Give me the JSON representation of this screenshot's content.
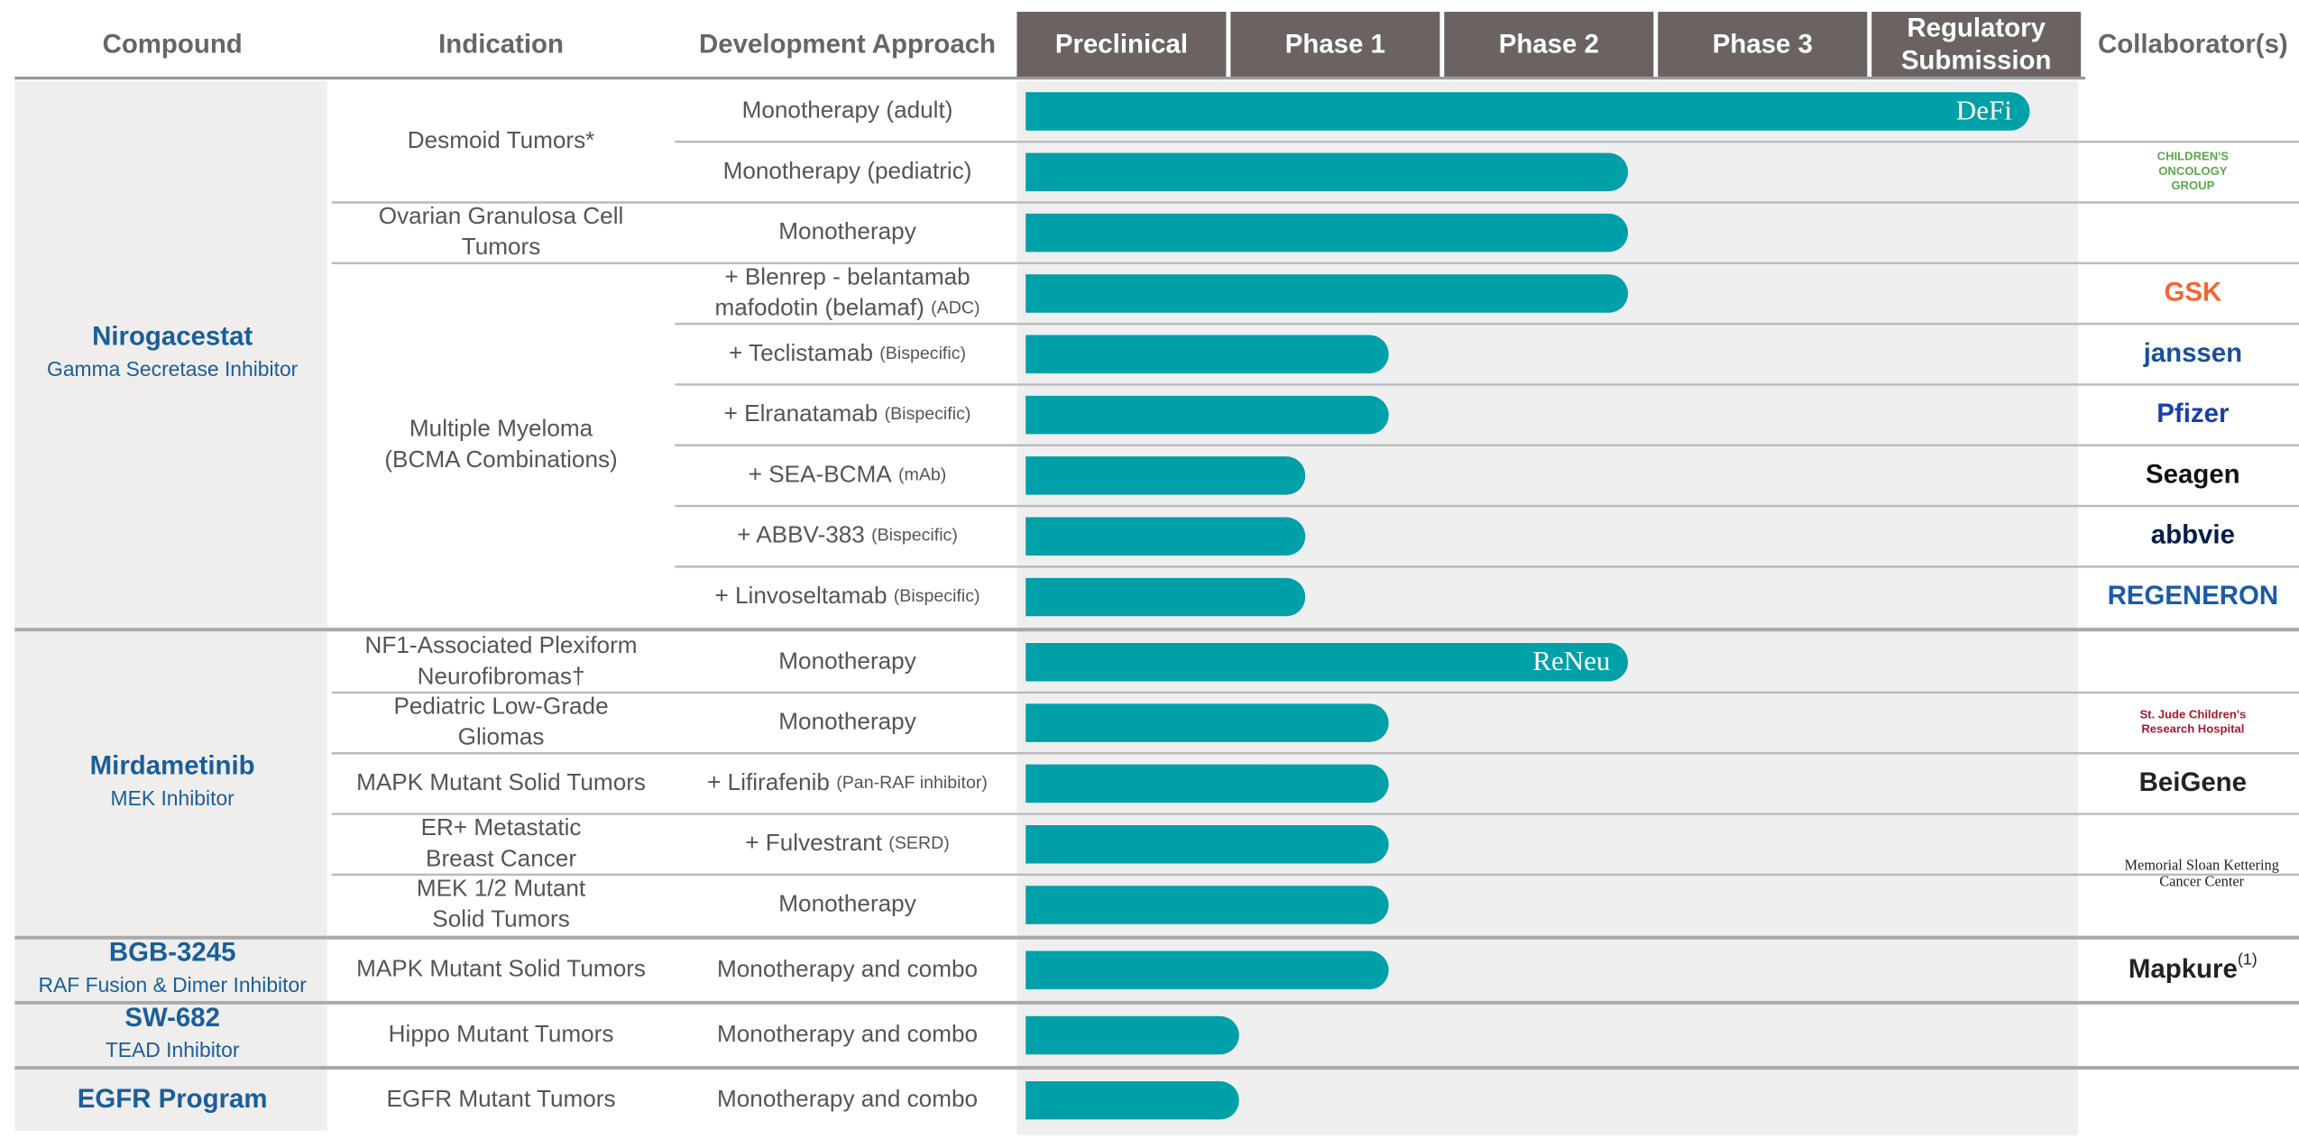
{
  "header": {
    "compound": "Compound",
    "indication": "Indication",
    "approach": "Development Approach",
    "stages": [
      [
        "Preclinical"
      ],
      [
        "Phase 1"
      ],
      [
        "Phase 2"
      ],
      [
        "Phase 3"
      ],
      [
        "Regulatory",
        "Submission"
      ]
    ],
    "collaborators": "Collaborator(s)"
  },
  "groups": [
    {
      "compound": "Nirogacestat",
      "subtitle": "Gamma Secretase Inhibitor",
      "indications": [
        {
          "name": [
            "Desmoid Tumors*"
          ],
          "rows": [
            {
              "approach": [
                "Monotherapy (adult)"
              ],
              "progress": 4.74,
              "bar_label": "DeFi"
            },
            {
              "approach": [
                "Monotherapy (pediatric)"
              ],
              "progress": 2.86,
              "collaborator": [
                "CHILDREN'S",
                "ONCOLOGY",
                "GROUP"
              ],
              "collaborator_color": "#5aa84a"
            }
          ]
        },
        {
          "name": [
            "Ovarian Granulosa Cell",
            "Tumors"
          ],
          "rows": [
            {
              "approach": [
                "Monotherapy"
              ],
              "progress": 2.86
            }
          ]
        },
        {
          "name": [
            "Multiple Myeloma",
            "(BCMA Combinations)"
          ],
          "rows": [
            {
              "approach": [
                "+ Blenrep - belantamab",
                "mafodotin (belamaf)"
              ],
              "note": "(ADC)",
              "progress": 2.86,
              "collaborator": [
                "GSK"
              ],
              "collaborator_color": "#f36633"
            },
            {
              "approach": [
                "+ Teclistamab"
              ],
              "note": "(Bispecific)",
              "progress": 1.74,
              "collaborator": [
                "janssen"
              ],
              "collaborator_color": "#1a4f9c"
            },
            {
              "approach": [
                "+ Elranatamab"
              ],
              "note": "(Bispecific)",
              "progress": 1.74,
              "collaborator": [
                "Pfizer"
              ],
              "collaborator_color": "#1b3fa8"
            },
            {
              "approach": [
                "+ SEA-BCMA"
              ],
              "note": "(mAb)",
              "progress": 1.35,
              "collaborator": [
                "Seagen"
              ],
              "collaborator_color": "#111111"
            },
            {
              "approach": [
                "+ ABBV-383"
              ],
              "note": "(Bispecific)",
              "progress": 1.35,
              "collaborator": [
                "abbvie"
              ],
              "collaborator_color": "#071d49"
            },
            {
              "approach": [
                "+ Linvoseltamab"
              ],
              "note": "(Bispecific)",
              "progress": 1.35,
              "collaborator": [
                "REGENERON"
              ],
              "collaborator_color": "#1a5aab"
            }
          ]
        }
      ]
    },
    {
      "compound": "Mirdametinib",
      "subtitle": "MEK Inhibitor",
      "shared_collaborator": [
        "Memorial Sloan Kettering",
        "Cancer Center"
      ],
      "indications": [
        {
          "name": [
            "NF1-Associated Plexiform",
            "Neurofibromas†"
          ],
          "rows": [
            {
              "approach": [
                "Monotherapy"
              ],
              "progress": 2.86,
              "bar_label": "ReNeu"
            }
          ]
        },
        {
          "name": [
            "Pediatric Low-Grade",
            "Gliomas"
          ],
          "rows": [
            {
              "approach": [
                "Monotherapy"
              ],
              "progress": 1.74,
              "collaborator": [
                "St. Jude Children's",
                "Research Hospital"
              ],
              "collaborator_color": "#a6192e"
            }
          ]
        },
        {
          "name": [
            "MAPK Mutant Solid Tumors"
          ],
          "rows": [
            {
              "approach": [
                "+ Lifirafenib"
              ],
              "note": "(Pan-RAF inhibitor)",
              "progress": 1.74,
              "collaborator": [
                "BeiGene"
              ],
              "collaborator_color": "#222222"
            }
          ]
        },
        {
          "name": [
            "ER+ Metastatic",
            "Breast Cancer"
          ],
          "rows": [
            {
              "approach": [
                "+ Fulvestrant"
              ],
              "note": "(SERD)",
              "progress": 1.74
            }
          ]
        },
        {
          "name": [
            "MEK 1/2 Mutant",
            "Solid Tumors"
          ],
          "rows": [
            {
              "approach": [
                "Monotherapy"
              ],
              "progress": 1.74
            }
          ]
        }
      ]
    },
    {
      "compound": "BGB-3245",
      "subtitle": "RAF Fusion & Dimer Inhibitor",
      "indications": [
        {
          "name": [
            "MAPK Mutant Solid Tumors"
          ],
          "rows": [
            {
              "approach": [
                "Monotherapy and combo"
              ],
              "progress": 1.74,
              "collaborator": [
                "Mapkure"
              ],
              "collaborator_note": "(1)",
              "collaborator_color": "#222222"
            }
          ]
        }
      ]
    },
    {
      "compound": "SW-682",
      "subtitle": "TEAD Inhibitor",
      "indications": [
        {
          "name": [
            "Hippo Mutant Tumors"
          ],
          "rows": [
            {
              "approach": [
                "Monotherapy and combo"
              ],
              "progress": 1.04
            }
          ]
        }
      ]
    },
    {
      "compound": "EGFR Program",
      "indications": [
        {
          "name": [
            "EGFR Mutant Tumors"
          ],
          "rows": [
            {
              "approach": [
                "Monotherapy and combo"
              ],
              "progress": 1.04
            }
          ]
        }
      ]
    }
  ]
}
